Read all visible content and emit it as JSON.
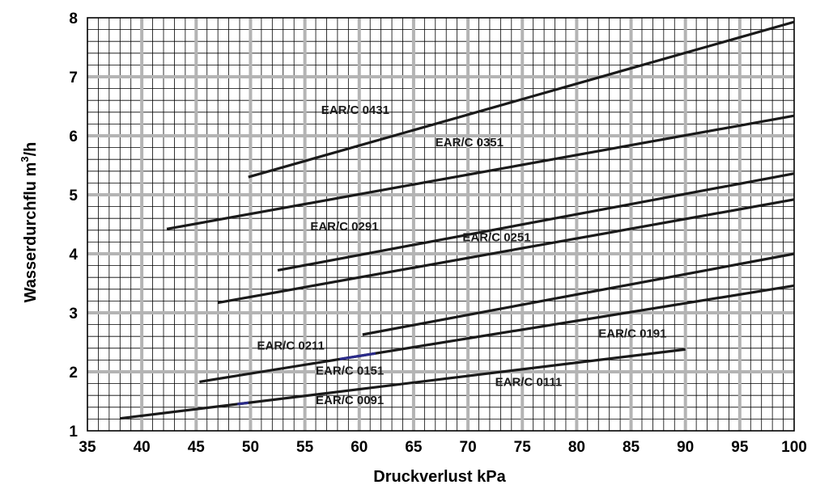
{
  "chart_data": {
    "type": "line",
    "title": "",
    "xlabel": "Druckverlust kPa",
    "ylabel": "Wasserdurchflu m³/h",
    "ylabel_main": "Wasserdurchflu m",
    "ylabel_sup": "3",
    "ylabel_unit": "/h",
    "xlim": [
      35,
      100
    ],
    "ylim": [
      1,
      8
    ],
    "x_ticks": [
      35,
      40,
      45,
      50,
      55,
      60,
      65,
      70,
      75,
      80,
      85,
      90,
      95,
      100
    ],
    "y_ticks": [
      1,
      2,
      3,
      4,
      5,
      6,
      7,
      8
    ],
    "grid": true,
    "colors": {
      "grid_minor": "#000000",
      "grid_major": "#b4b4b4",
      "line": "#1a1a1a",
      "accent": "#2b2b8a"
    },
    "series": [
      {
        "name": "EAR/C 0431",
        "x": [
          49.8,
          100
        ],
        "y": [
          5.3,
          7.93
        ]
      },
      {
        "name": "EAR/C 0351",
        "x": [
          42.3,
          100
        ],
        "y": [
          4.42,
          6.34
        ]
      },
      {
        "name": "EAR/C 0291",
        "x": [
          52.5,
          100
        ],
        "y": [
          3.72,
          5.36
        ]
      },
      {
        "name": "EAR/C 0251",
        "x": [
          47,
          100
        ],
        "y": [
          3.17,
          4.92
        ]
      },
      {
        "name": "EAR/C 0211",
        "x": [
          45.3,
          100
        ],
        "y": [
          1.83,
          3.46
        ]
      },
      {
        "name": "EAR/C 0191",
        "x": [
          60.3,
          100
        ],
        "y": [
          2.63,
          4.0
        ]
      },
      {
        "name": "EAR/C 0151",
        "x": [
          38,
          90
        ],
        "y": [
          1.21,
          2.38
        ]
      },
      {
        "name": "EAR/C 0111",
        "x": [
          38,
          90
        ],
        "y": [
          1.21,
          2.38
        ]
      },
      {
        "name": "EAR/C 0091",
        "x": [
          38,
          90
        ],
        "y": [
          1.21,
          2.38
        ]
      }
    ],
    "annotations": [
      {
        "text": "EAR/C 0431",
        "x": 56.5,
        "y": 6.37
      },
      {
        "text": "EAR/C 0351",
        "x": 67,
        "y": 5.82
      },
      {
        "text": "EAR/C 0291",
        "x": 55.5,
        "y": 4.4
      },
      {
        "text": "EAR/C 0251",
        "x": 69.5,
        "y": 4.21
      },
      {
        "text": "EAR/C 0211",
        "x": 50.6,
        "y": 2.38
      },
      {
        "text": "EAR/C 0191",
        "x": 82,
        "y": 2.58
      },
      {
        "text": "EAR/C 0151",
        "x": 56,
        "y": 1.95
      },
      {
        "text": "EAR/C 0111",
        "x": 72.5,
        "y": 1.76
      },
      {
        "text": "EAR/C 0091",
        "x": 56,
        "y": 1.45
      }
    ]
  }
}
